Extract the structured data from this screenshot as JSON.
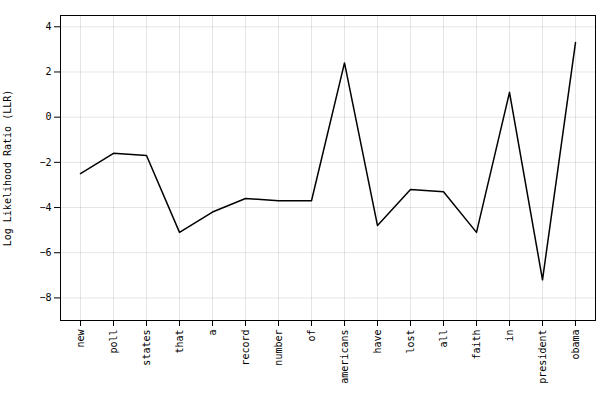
{
  "chart_data": {
    "type": "line",
    "categories": [
      "new",
      "poll",
      "states",
      "that",
      "a",
      "record",
      "number",
      "of",
      "americans",
      "have",
      "lost",
      "all",
      "faith",
      "in",
      "president",
      "obama"
    ],
    "values": [
      -2.5,
      -1.6,
      -1.7,
      -5.1,
      -4.2,
      -3.6,
      -3.7,
      -3.7,
      2.4,
      -4.8,
      -3.2,
      -3.3,
      -5.1,
      1.1,
      -7.2,
      3.3
    ],
    "color": "#000000",
    "ylabel": "Log Likelihood Ratio (LLR)",
    "ylim": [
      -9,
      4.5
    ],
    "yticks": [
      -8,
      -6,
      -4,
      -2,
      0,
      2,
      4
    ],
    "grid": true
  }
}
